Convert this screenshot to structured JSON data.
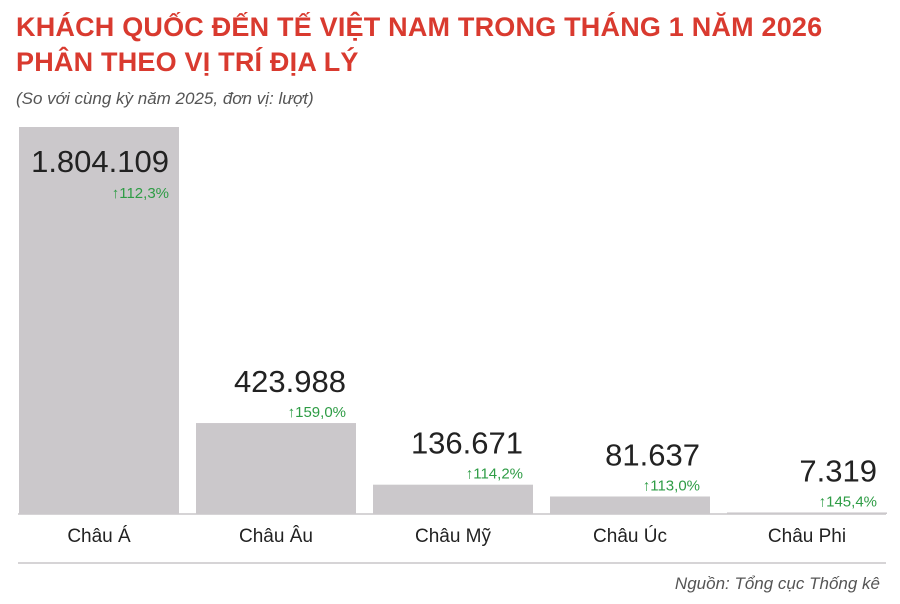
{
  "header": {
    "title_line1": "KHÁCH QUỐC ĐẾN TẾ VIỆT NAM TRONG THÁNG 1 NĂM 2026",
    "title_line2": "PHÂN THEO VỊ TRÍ ĐỊA LÝ",
    "subtitle": "(So với cùng kỳ năm 2025, đơn vị: lượt)"
  },
  "footer": {
    "source": "Nguồn: Tổng cục Thống kê"
  },
  "colors": {
    "title": "#d93a2f",
    "bar": "#cbc8cb",
    "growth": "#2e9c45",
    "text": "#222222"
  },
  "chart_data": {
    "type": "bar",
    "categories": [
      "Châu Á",
      "Châu Âu",
      "Châu Mỹ",
      "Châu Úc",
      "Châu Phi"
    ],
    "values": [
      1804109,
      423988,
      136671,
      81637,
      7319
    ],
    "value_labels": [
      "1.804.109",
      "423.988",
      "136.671",
      "81.637",
      "7.319"
    ],
    "growth_labels": [
      "↑112,3%",
      "↑159,0%",
      "↑114,2%",
      "↑113,0%",
      "↑145,4%"
    ],
    "title": "KHÁCH QUỐC ĐẾN TẾ VIỆT NAM TRONG THÁNG 1 NĂM 2026 PHÂN THEO VỊ TRÍ ĐỊA LÝ",
    "xlabel": "",
    "ylabel": "",
    "ylim": [
      0,
      1804109
    ],
    "grid": false,
    "legend": "none"
  }
}
